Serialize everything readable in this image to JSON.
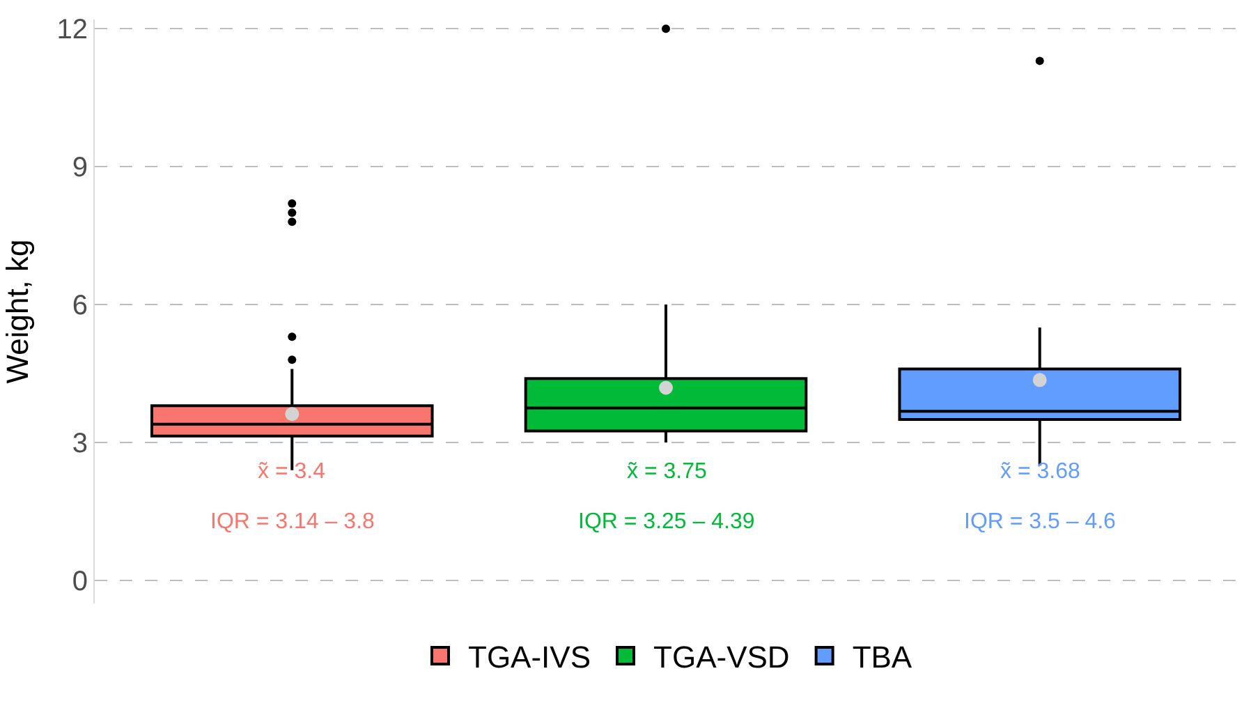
{
  "chart_data": {
    "type": "box",
    "ylabel": "Weight, kg",
    "categories": [
      null,
      null,
      null
    ],
    "series": [
      {
        "name": "TGA-IVS",
        "color": "#f8766d",
        "boxes": [
          {
            "low": 2.4,
            "q1": 3.14,
            "median": 3.4,
            "q3": 3.8,
            "high": 4.6,
            "mean": 3.62,
            "outliers": [
              4.8,
              5.3,
              7.8,
              8.0,
              8.2
            ]
          },
          null,
          null
        ]
      },
      {
        "name": "TGA-VSD",
        "color": "#00ba38",
        "boxes": [
          null,
          {
            "low": 3.0,
            "q1": 3.25,
            "median": 3.75,
            "q3": 4.39,
            "high": 6.0,
            "mean": 4.19,
            "outliers": [
              12.0
            ]
          },
          null
        ]
      },
      {
        "name": "TBA",
        "color": "#619cff",
        "boxes": [
          null,
          null,
          {
            "low": 2.5,
            "q1": 3.5,
            "median": 3.68,
            "q3": 4.6,
            "high": 5.5,
            "mean": 4.36,
            "outliers": [
              11.3
            ]
          }
        ]
      }
    ],
    "annotations": [
      "x̃ = 3.4",
      "IQR = 3.14 – 3.8",
      "x̃ = 3.75",
      "IQR = 3.25 – 4.39",
      "x̃ = 3.68",
      "IQR = 3.5 – 4.6"
    ],
    "ylim": [
      -0.5,
      12.2
    ],
    "yticks": [
      0,
      3,
      6,
      9,
      12
    ],
    "grid": "y",
    "legend": "bottom",
    "marker": "circle"
  }
}
